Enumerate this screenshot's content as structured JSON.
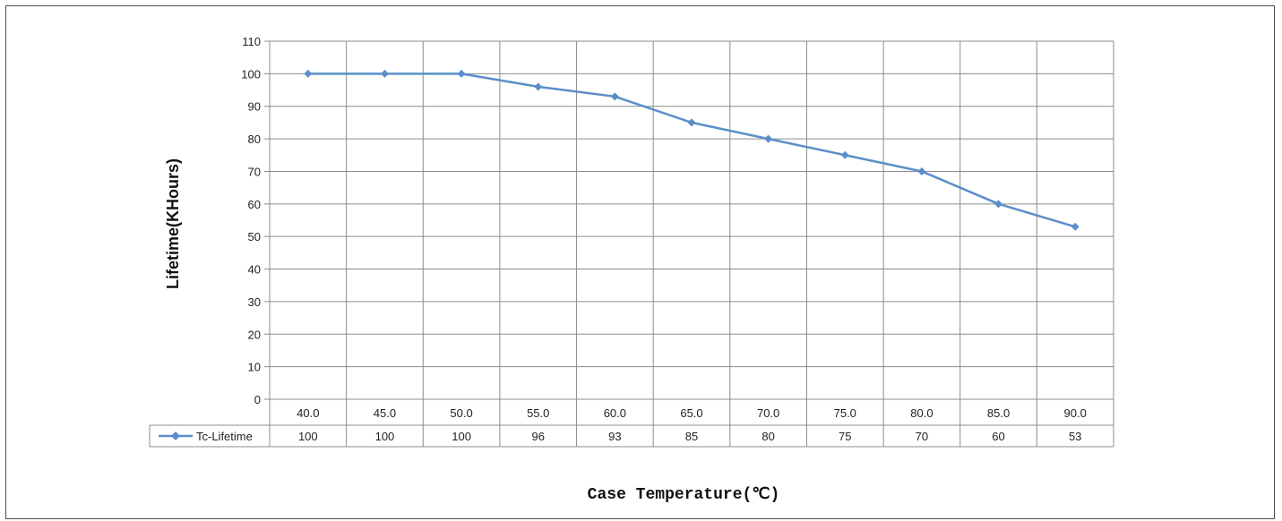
{
  "chart_data": {
    "type": "line",
    "title": "",
    "xlabel": "Case Temperature(℃)",
    "ylabel": "Lifetime(KHours)",
    "categories": [
      "40.0",
      "45.0",
      "50.0",
      "55.0",
      "60.0",
      "65.0",
      "70.0",
      "75.0",
      "80.0",
      "85.0",
      "90.0"
    ],
    "series": [
      {
        "name": "Tc-Lifetime",
        "values": [
          100,
          100,
          100,
          96,
          93,
          85,
          80,
          75,
          70,
          60,
          53
        ],
        "color": "#5b8fc9",
        "marker": "diamond"
      }
    ],
    "ylim": [
      0,
      110
    ],
    "yticks": [
      0,
      10,
      20,
      30,
      40,
      50,
      60,
      70,
      80,
      90,
      100,
      110
    ],
    "grid": true,
    "legend": "data-table-left",
    "data_table": true
  }
}
